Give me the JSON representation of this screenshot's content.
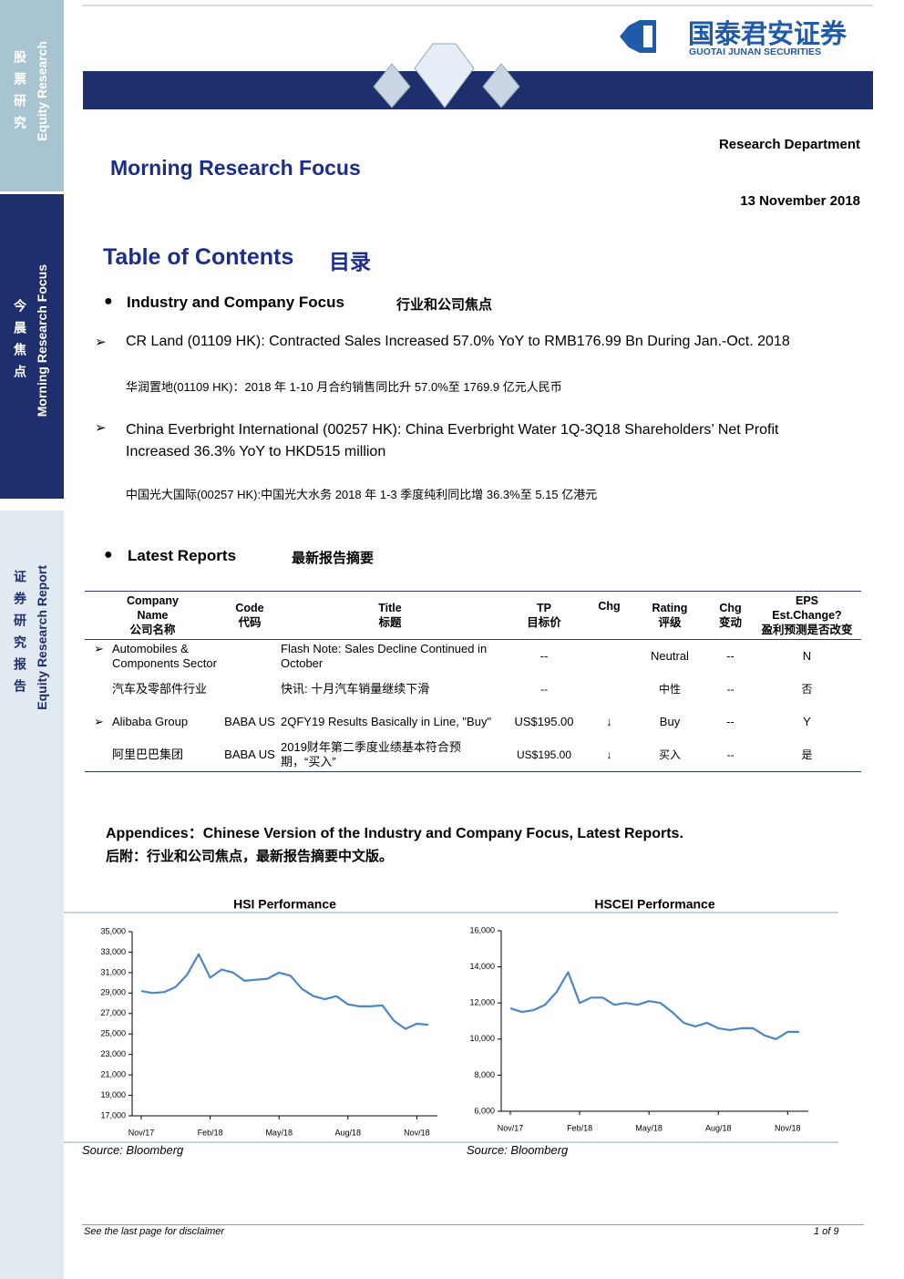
{
  "sidebar": {
    "top_cn": "股票研究",
    "top_en": "Equity Research",
    "mid_cn": "今晨焦点",
    "mid_en": "Morning Research Focus",
    "bot_cn": "证券研究报告",
    "bot_en": "Equity Research Report"
  },
  "header": {
    "logo_cn": "国泰君安证券",
    "logo_en": "GUOTAI JUNAN SECURITIES",
    "department": "Research Department",
    "title": "Morning Research Focus",
    "date": "13 November 2018"
  },
  "toc": {
    "title": "Table of Contents",
    "title_cn": "目录",
    "section1": {
      "title": "Industry and Company Focus",
      "title_cn": "行业和公司焦点"
    },
    "items": [
      {
        "en": "CR Land (01109 HK): Contracted Sales Increased 57.0% YoY to RMB176.99 Bn During Jan.-Oct. 2018",
        "cn": "华润置地(01109 HK)：2018 年 1-10 月合约销售同比升 57.0%至 1769.9 亿元人民币"
      },
      {
        "en": "China Everbright International (00257 HK): China Everbright Water 1Q-3Q18 Shareholders’ Net Profit Increased 36.3% YoY to HKD515 million",
        "cn": "中国光大国际(00257 HK):中国光大水务 2018 年 1-3 季度纯利同比增 36.3%至 5.15 亿港元"
      }
    ],
    "section2": {
      "title": "Latest Reports",
      "title_cn": "最新报告摘要"
    }
  },
  "table": {
    "headers": [
      [
        "Company",
        "Name",
        "公司名称"
      ],
      [
        "Code",
        "代码"
      ],
      [
        "Title",
        "标题"
      ],
      [
        "TP",
        "目标价"
      ],
      [
        "Chg"
      ],
      [
        "Rating",
        "评级"
      ],
      [
        "Chg",
        "变动"
      ],
      [
        "EPS",
        "Est.Change?",
        "盈利预测是否改变"
      ]
    ],
    "rows": [
      {
        "company": "Automobiles & Components Sector",
        "title": "Flash Note: Sales Decline Continued in October",
        "tp": "--",
        "rating": "Neutral",
        "chg2": "--",
        "eps": "N"
      },
      {
        "company": "汽车及零部件行业",
        "title": "快讯: 十月汽车销量继续下滑",
        "tp": "--",
        "rating": "中性",
        "chg2": "--",
        "eps": "否"
      },
      {
        "company": "Alibaba Group",
        "code": "BABA US",
        "title": "2QFY19 Results Basically in Line, \"Buy\"",
        "tp": "US$195.00",
        "chg": "↓",
        "rating": "Buy",
        "chg2": "--",
        "eps": "Y"
      },
      {
        "company": "阿里巴巴集团",
        "code": "BABA US",
        "title": "2019财年第二季度业绩基本符合预期，“买入”",
        "tp": "US$195.00",
        "chg": "↓",
        "rating": "买入",
        "chg2": "--",
        "eps": "是"
      }
    ]
  },
  "appendix": {
    "en": "Appendices：Chinese Version of the Industry and Company Focus, Latest Reports.",
    "cn": "后附：行业和公司焦点，最新报告摘要中文版。"
  },
  "charts": [
    {
      "type": "line",
      "title": "HSI Performance",
      "source": "Source: Bloomberg",
      "categories": [
        "Nov/17",
        null,
        null,
        null,
        null,
        null,
        "Feb/18",
        null,
        null,
        null,
        null,
        null,
        "May/18",
        null,
        null,
        null,
        null,
        null,
        "Aug/18",
        null,
        null,
        null,
        null,
        null,
        "Nov/18",
        null
      ],
      "series": [
        {
          "name": "HSI",
          "color": "#4a86c8",
          "values": [
            29200,
            29000,
            29100,
            29600,
            30800,
            32800,
            30500,
            31300,
            31000,
            30200,
            30300,
            30400,
            31000,
            30700,
            29400,
            28700,
            28400,
            28700,
            27900,
            27700,
            27700,
            27800,
            26300,
            25500,
            26000,
            25900
          ]
        }
      ],
      "ylim": [
        17000,
        35000
      ],
      "yticks": [
        {
          "value": 17000,
          "label": "17,000"
        },
        {
          "value": 19000,
          "label": "19,000"
        },
        {
          "value": 21000,
          "label": "21,000"
        },
        {
          "value": 23000,
          "label": "23,000"
        },
        {
          "value": 25000,
          "label": "25,000"
        },
        {
          "value": 27000,
          "label": "27,000"
        },
        {
          "value": 29000,
          "label": "29,000"
        },
        {
          "value": 31000,
          "label": "31,000"
        },
        {
          "value": 33000,
          "label": "33,000"
        },
        {
          "value": 35000,
          "label": "35,000"
        }
      ]
    },
    {
      "type": "line",
      "title": "HSCEI Performance",
      "source": "Source: Bloomberg",
      "categories": [
        "Nov/17",
        null,
        null,
        null,
        null,
        null,
        "Feb/18",
        null,
        null,
        null,
        null,
        null,
        "May/18",
        null,
        null,
        null,
        null,
        null,
        "Aug/18",
        null,
        null,
        null,
        null,
        null,
        "Nov/18",
        null
      ],
      "series": [
        {
          "name": "HSCEI",
          "color": "#4a86c8",
          "values": [
            11700,
            11500,
            11600,
            11900,
            12600,
            13700,
            12000,
            12300,
            12300,
            11900,
            12000,
            11900,
            12100,
            12000,
            11500,
            10900,
            10700,
            10900,
            10600,
            10500,
            10600,
            10600,
            10200,
            10000,
            10400,
            10400
          ]
        }
      ],
      "ylim": [
        6000,
        16000
      ],
      "yticks": [
        {
          "value": 6000,
          "label": "6,000"
        },
        {
          "value": 8000,
          "label": "8,000"
        },
        {
          "value": 10000,
          "label": "10,000"
        },
        {
          "value": 12000,
          "label": "12,000"
        },
        {
          "value": 14000,
          "label": "14,000"
        },
        {
          "value": 16000,
          "label": "16,000"
        }
      ]
    }
  ],
  "footer": {
    "disclaimer": "See  the last page for disclaimer",
    "page": "1 of 9"
  }
}
